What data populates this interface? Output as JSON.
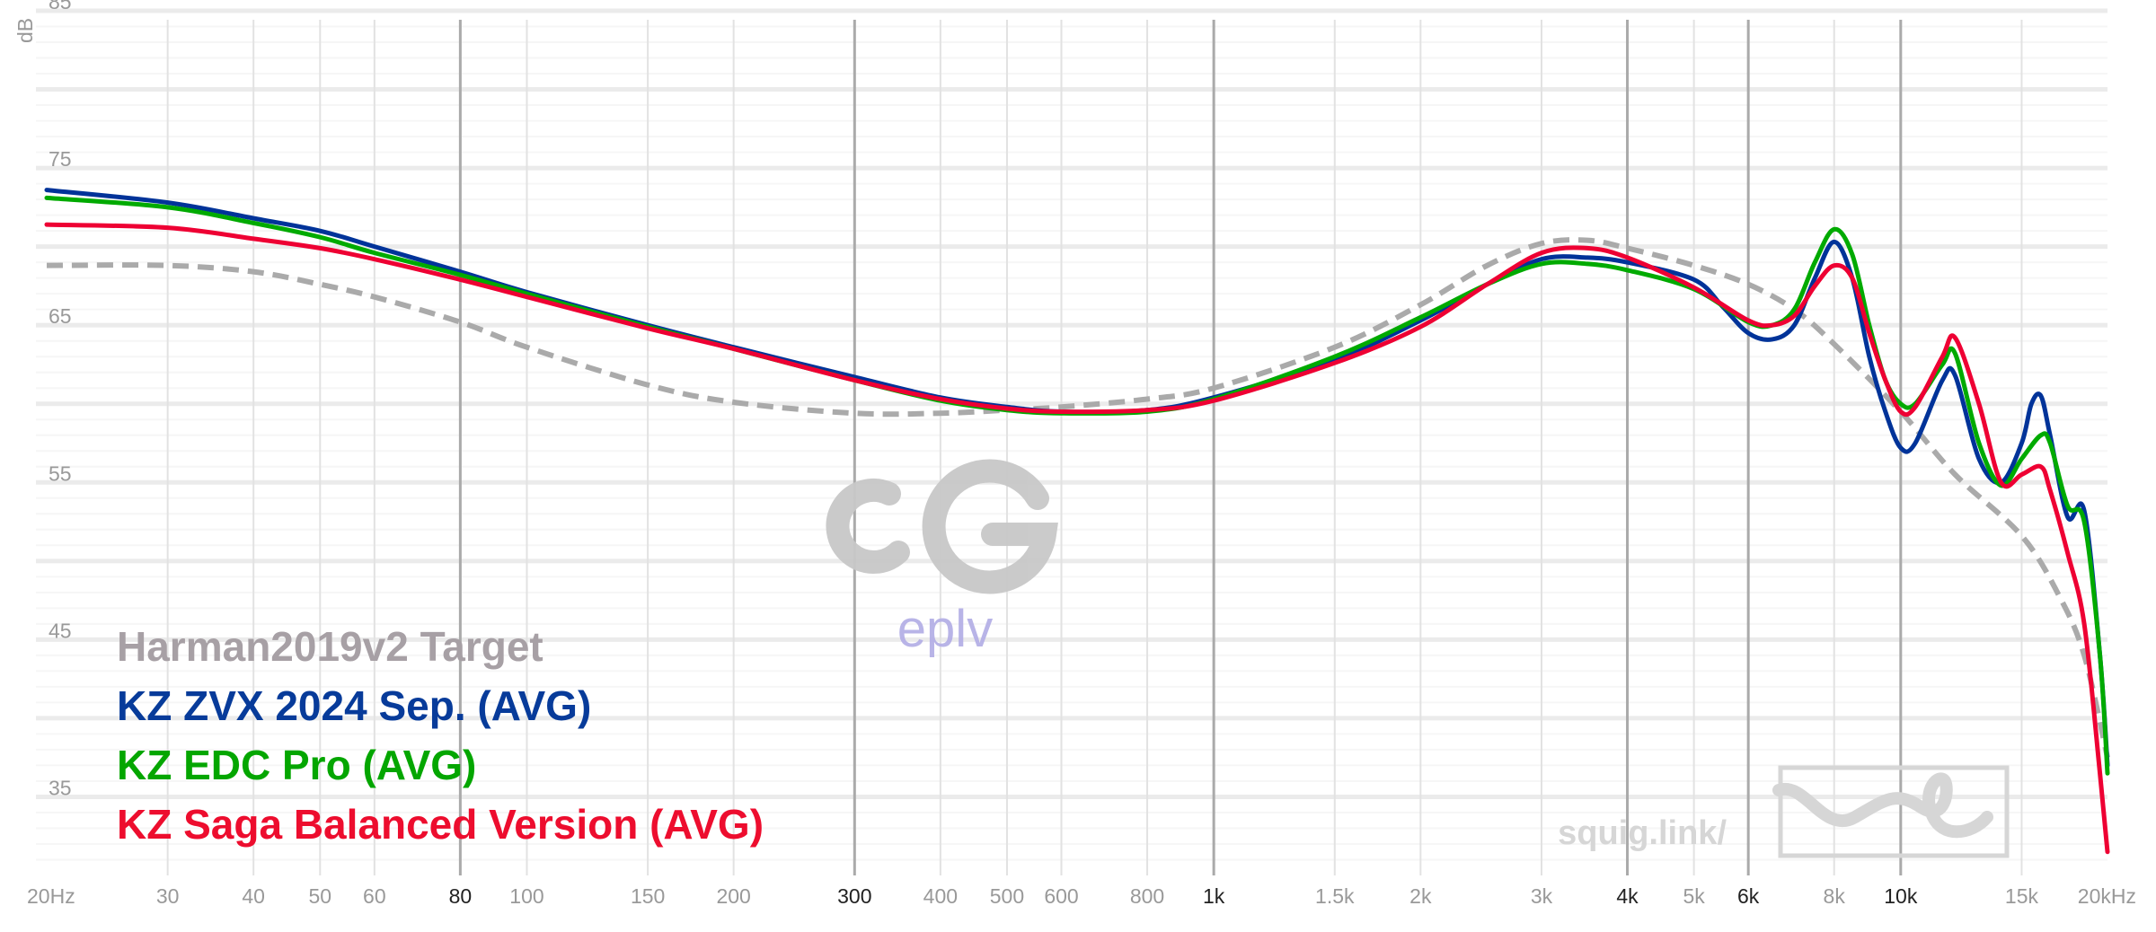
{
  "chart_data": {
    "type": "line",
    "title": "",
    "xlabel": "",
    "ylabel": "dB",
    "x_scale": "log",
    "xlim": [
      20,
      20000
    ],
    "ylim": [
      30,
      85
    ],
    "grid": true,
    "legend_position": "bottom-left",
    "x_ticks": [
      {
        "value": 20,
        "label": "20Hz",
        "major": false
      },
      {
        "value": 30,
        "label": "30",
        "major": false
      },
      {
        "value": 40,
        "label": "40",
        "major": false
      },
      {
        "value": 50,
        "label": "50",
        "major": false
      },
      {
        "value": 60,
        "label": "60",
        "major": false
      },
      {
        "value": 80,
        "label": "80",
        "major": true
      },
      {
        "value": 100,
        "label": "100",
        "major": false
      },
      {
        "value": 150,
        "label": "150",
        "major": false
      },
      {
        "value": 200,
        "label": "200",
        "major": false
      },
      {
        "value": 300,
        "label": "300",
        "major": true
      },
      {
        "value": 400,
        "label": "400",
        "major": false
      },
      {
        "value": 500,
        "label": "500",
        "major": false
      },
      {
        "value": 600,
        "label": "600",
        "major": false
      },
      {
        "value": 800,
        "label": "800",
        "major": false
      },
      {
        "value": 1000,
        "label": "1k",
        "major": true
      },
      {
        "value": 1500,
        "label": "1.5k",
        "major": false
      },
      {
        "value": 2000,
        "label": "2k",
        "major": false
      },
      {
        "value": 3000,
        "label": "3k",
        "major": false
      },
      {
        "value": 4000,
        "label": "4k",
        "major": true
      },
      {
        "value": 5000,
        "label": "5k",
        "major": false
      },
      {
        "value": 6000,
        "label": "6k",
        "major": true
      },
      {
        "value": 8000,
        "label": "8k",
        "major": false
      },
      {
        "value": 10000,
        "label": "10k",
        "major": true
      },
      {
        "value": 15000,
        "label": "15k",
        "major": false
      },
      {
        "value": 20000,
        "label": "20kHz",
        "major": false
      }
    ],
    "y_ticks": [
      {
        "value": 85,
        "label": "85"
      },
      {
        "value": 75,
        "label": "75"
      },
      {
        "value": 65,
        "label": "65"
      },
      {
        "value": 55,
        "label": "55"
      },
      {
        "value": 45,
        "label": "45"
      },
      {
        "value": 35,
        "label": "35"
      }
    ],
    "series": [
      {
        "name": "Harman2019v2 Target",
        "color": "#aaaaaa",
        "legend_color": "#a7a0a5",
        "dashed": true,
        "points": [
          [
            20,
            68.8
          ],
          [
            30,
            68.8
          ],
          [
            40,
            68.4
          ],
          [
            50,
            67.6
          ],
          [
            60,
            66.8
          ],
          [
            80,
            65.2
          ],
          [
            100,
            63.6
          ],
          [
            150,
            61.2
          ],
          [
            200,
            60.1
          ],
          [
            300,
            59.4
          ],
          [
            400,
            59.4
          ],
          [
            500,
            59.6
          ],
          [
            600,
            59.8
          ],
          [
            800,
            60.3
          ],
          [
            1000,
            61.0
          ],
          [
            1500,
            63.6
          ],
          [
            2000,
            66.3
          ],
          [
            2500,
            68.8
          ],
          [
            3000,
            70.2
          ],
          [
            3500,
            70.4
          ],
          [
            4000,
            69.9
          ],
          [
            5000,
            68.8
          ],
          [
            6000,
            67.6
          ],
          [
            7000,
            66.0
          ],
          [
            8000,
            63.8
          ],
          [
            10000,
            59.5
          ],
          [
            12000,
            55.5
          ],
          [
            15000,
            51.6
          ],
          [
            17000,
            47.8
          ],
          [
            18500,
            44.0
          ],
          [
            20000,
            37.5
          ]
        ]
      },
      {
        "name": "KZ ZVX 2024 Sep. (AVG)",
        "color": "#003399",
        "legend_color": "#073b9a",
        "dashed": false,
        "points": [
          [
            20,
            73.6
          ],
          [
            30,
            72.8
          ],
          [
            40,
            71.8
          ],
          [
            50,
            71.0
          ],
          [
            60,
            70.0
          ],
          [
            80,
            68.4
          ],
          [
            100,
            67.1
          ],
          [
            150,
            65.0
          ],
          [
            200,
            63.6
          ],
          [
            300,
            61.7
          ],
          [
            400,
            60.4
          ],
          [
            500,
            59.8
          ],
          [
            600,
            59.5
          ],
          [
            800,
            59.6
          ],
          [
            1000,
            60.4
          ],
          [
            1500,
            62.8
          ],
          [
            2000,
            65.3
          ],
          [
            2500,
            67.6
          ],
          [
            3000,
            69.2
          ],
          [
            3500,
            69.3
          ],
          [
            4000,
            69.0
          ],
          [
            5000,
            67.9
          ],
          [
            5500,
            66.2
          ],
          [
            6000,
            64.5
          ],
          [
            6500,
            64.1
          ],
          [
            7000,
            65.0
          ],
          [
            7500,
            68.0
          ],
          [
            8000,
            70.3
          ],
          [
            8500,
            68.0
          ],
          [
            9000,
            63.0
          ],
          [
            9500,
            59.5
          ],
          [
            10000,
            57.2
          ],
          [
            10500,
            57.5
          ],
          [
            11500,
            61.5
          ],
          [
            12000,
            61.8
          ],
          [
            13000,
            56.5
          ],
          [
            14000,
            55.0
          ],
          [
            15000,
            57.5
          ],
          [
            15500,
            60.0
          ],
          [
            16000,
            60.5
          ],
          [
            16500,
            58.0
          ],
          [
            17500,
            52.8
          ],
          [
            18500,
            53.2
          ],
          [
            19500,
            44.0
          ],
          [
            20000,
            37.0
          ]
        ]
      },
      {
        "name": "KZ EDC Pro (AVG)",
        "color": "#00aa00",
        "legend_color": "#04a600",
        "dashed": false,
        "points": [
          [
            20,
            73.1
          ],
          [
            30,
            72.5
          ],
          [
            40,
            71.5
          ],
          [
            50,
            70.6
          ],
          [
            60,
            69.6
          ],
          [
            80,
            68.2
          ],
          [
            100,
            67.0
          ],
          [
            150,
            64.9
          ],
          [
            200,
            63.5
          ],
          [
            300,
            61.5
          ],
          [
            400,
            60.2
          ],
          [
            500,
            59.6
          ],
          [
            600,
            59.4
          ],
          [
            800,
            59.5
          ],
          [
            1000,
            60.3
          ],
          [
            1500,
            63.0
          ],
          [
            2000,
            65.5
          ],
          [
            2500,
            67.6
          ],
          [
            3000,
            68.9
          ],
          [
            3500,
            68.9
          ],
          [
            4000,
            68.5
          ],
          [
            5000,
            67.3
          ],
          [
            6000,
            65.2
          ],
          [
            6500,
            65.0
          ],
          [
            7000,
            66.0
          ],
          [
            7500,
            69.0
          ],
          [
            8000,
            71.1
          ],
          [
            8500,
            69.5
          ],
          [
            9000,
            65.0
          ],
          [
            9500,
            61.5
          ],
          [
            10000,
            60.0
          ],
          [
            10500,
            60.0
          ],
          [
            11500,
            62.5
          ],
          [
            12000,
            63.2
          ],
          [
            13000,
            57.5
          ],
          [
            14000,
            54.8
          ],
          [
            15000,
            56.5
          ],
          [
            16000,
            58.0
          ],
          [
            16500,
            57.5
          ],
          [
            17500,
            53.5
          ],
          [
            18500,
            52.5
          ],
          [
            19500,
            44.0
          ],
          [
            20000,
            36.5
          ]
        ]
      },
      {
        "name": "KZ Saga Balanced Version (AVG)",
        "color": "#ee0033",
        "legend_color": "#ed0d2e",
        "dashed": false,
        "points": [
          [
            20,
            71.4
          ],
          [
            30,
            71.2
          ],
          [
            40,
            70.5
          ],
          [
            50,
            69.9
          ],
          [
            60,
            69.2
          ],
          [
            80,
            67.9
          ],
          [
            100,
            66.8
          ],
          [
            150,
            64.8
          ],
          [
            200,
            63.5
          ],
          [
            300,
            61.5
          ],
          [
            400,
            60.3
          ],
          [
            500,
            59.7
          ],
          [
            600,
            59.5
          ],
          [
            800,
            59.6
          ],
          [
            1000,
            60.2
          ],
          [
            1500,
            62.6
          ],
          [
            2000,
            64.9
          ],
          [
            2500,
            67.6
          ],
          [
            3000,
            69.6
          ],
          [
            3500,
            69.9
          ],
          [
            4000,
            69.3
          ],
          [
            5000,
            67.4
          ],
          [
            6000,
            65.3
          ],
          [
            6500,
            65.0
          ],
          [
            7000,
            65.6
          ],
          [
            7500,
            67.5
          ],
          [
            8000,
            68.8
          ],
          [
            8500,
            68.0
          ],
          [
            9000,
            64.5
          ],
          [
            9500,
            61.5
          ],
          [
            10000,
            59.5
          ],
          [
            10500,
            59.8
          ],
          [
            11500,
            63.0
          ],
          [
            12000,
            64.2
          ],
          [
            13000,
            60.0
          ],
          [
            14000,
            55.0
          ],
          [
            15000,
            55.5
          ],
          [
            16000,
            56.0
          ],
          [
            16500,
            54.5
          ],
          [
            17500,
            50.5
          ],
          [
            18500,
            46.0
          ],
          [
            19500,
            36.5
          ],
          [
            20000,
            31.5
          ]
        ]
      }
    ]
  },
  "watermarks": {
    "center_text": "eplv",
    "footer_text": "squig.link/"
  }
}
